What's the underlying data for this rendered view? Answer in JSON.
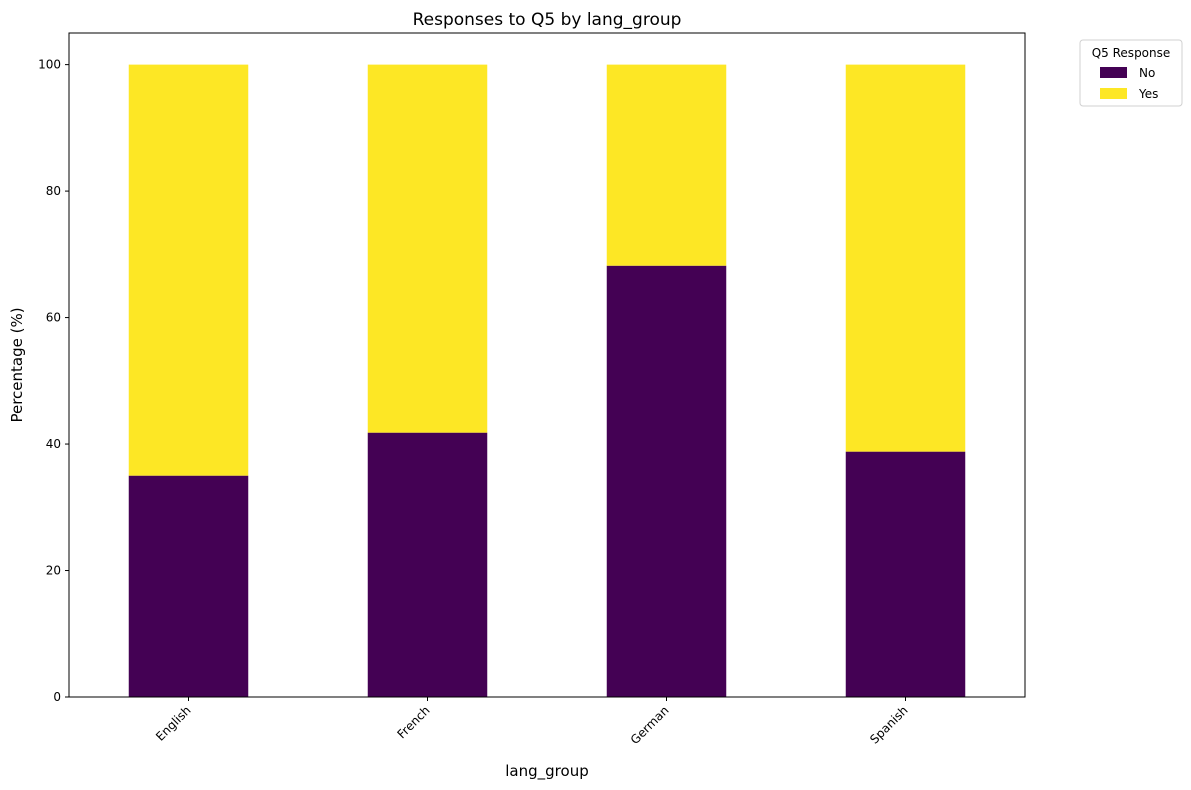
{
  "chart_data": {
    "type": "bar",
    "stacked": true,
    "title": "Responses to Q5 by lang_group",
    "xlabel": "lang_group",
    "ylabel": "Percentage (%)",
    "categories": [
      "English",
      "French",
      "German",
      "Spanish"
    ],
    "series": [
      {
        "name": "No",
        "values": [
          35.0,
          41.8,
          68.2,
          38.8
        ],
        "color": "#440154"
      },
      {
        "name": "Yes",
        "values": [
          65.0,
          58.2,
          31.8,
          61.2
        ],
        "color": "#fde725"
      }
    ],
    "ylim": [
      0,
      105
    ],
    "yticks": [
      0,
      20,
      40,
      60,
      80,
      100
    ],
    "grid": false,
    "legend": {
      "title": "Q5 Response",
      "placement": "outside-top-right"
    }
  }
}
